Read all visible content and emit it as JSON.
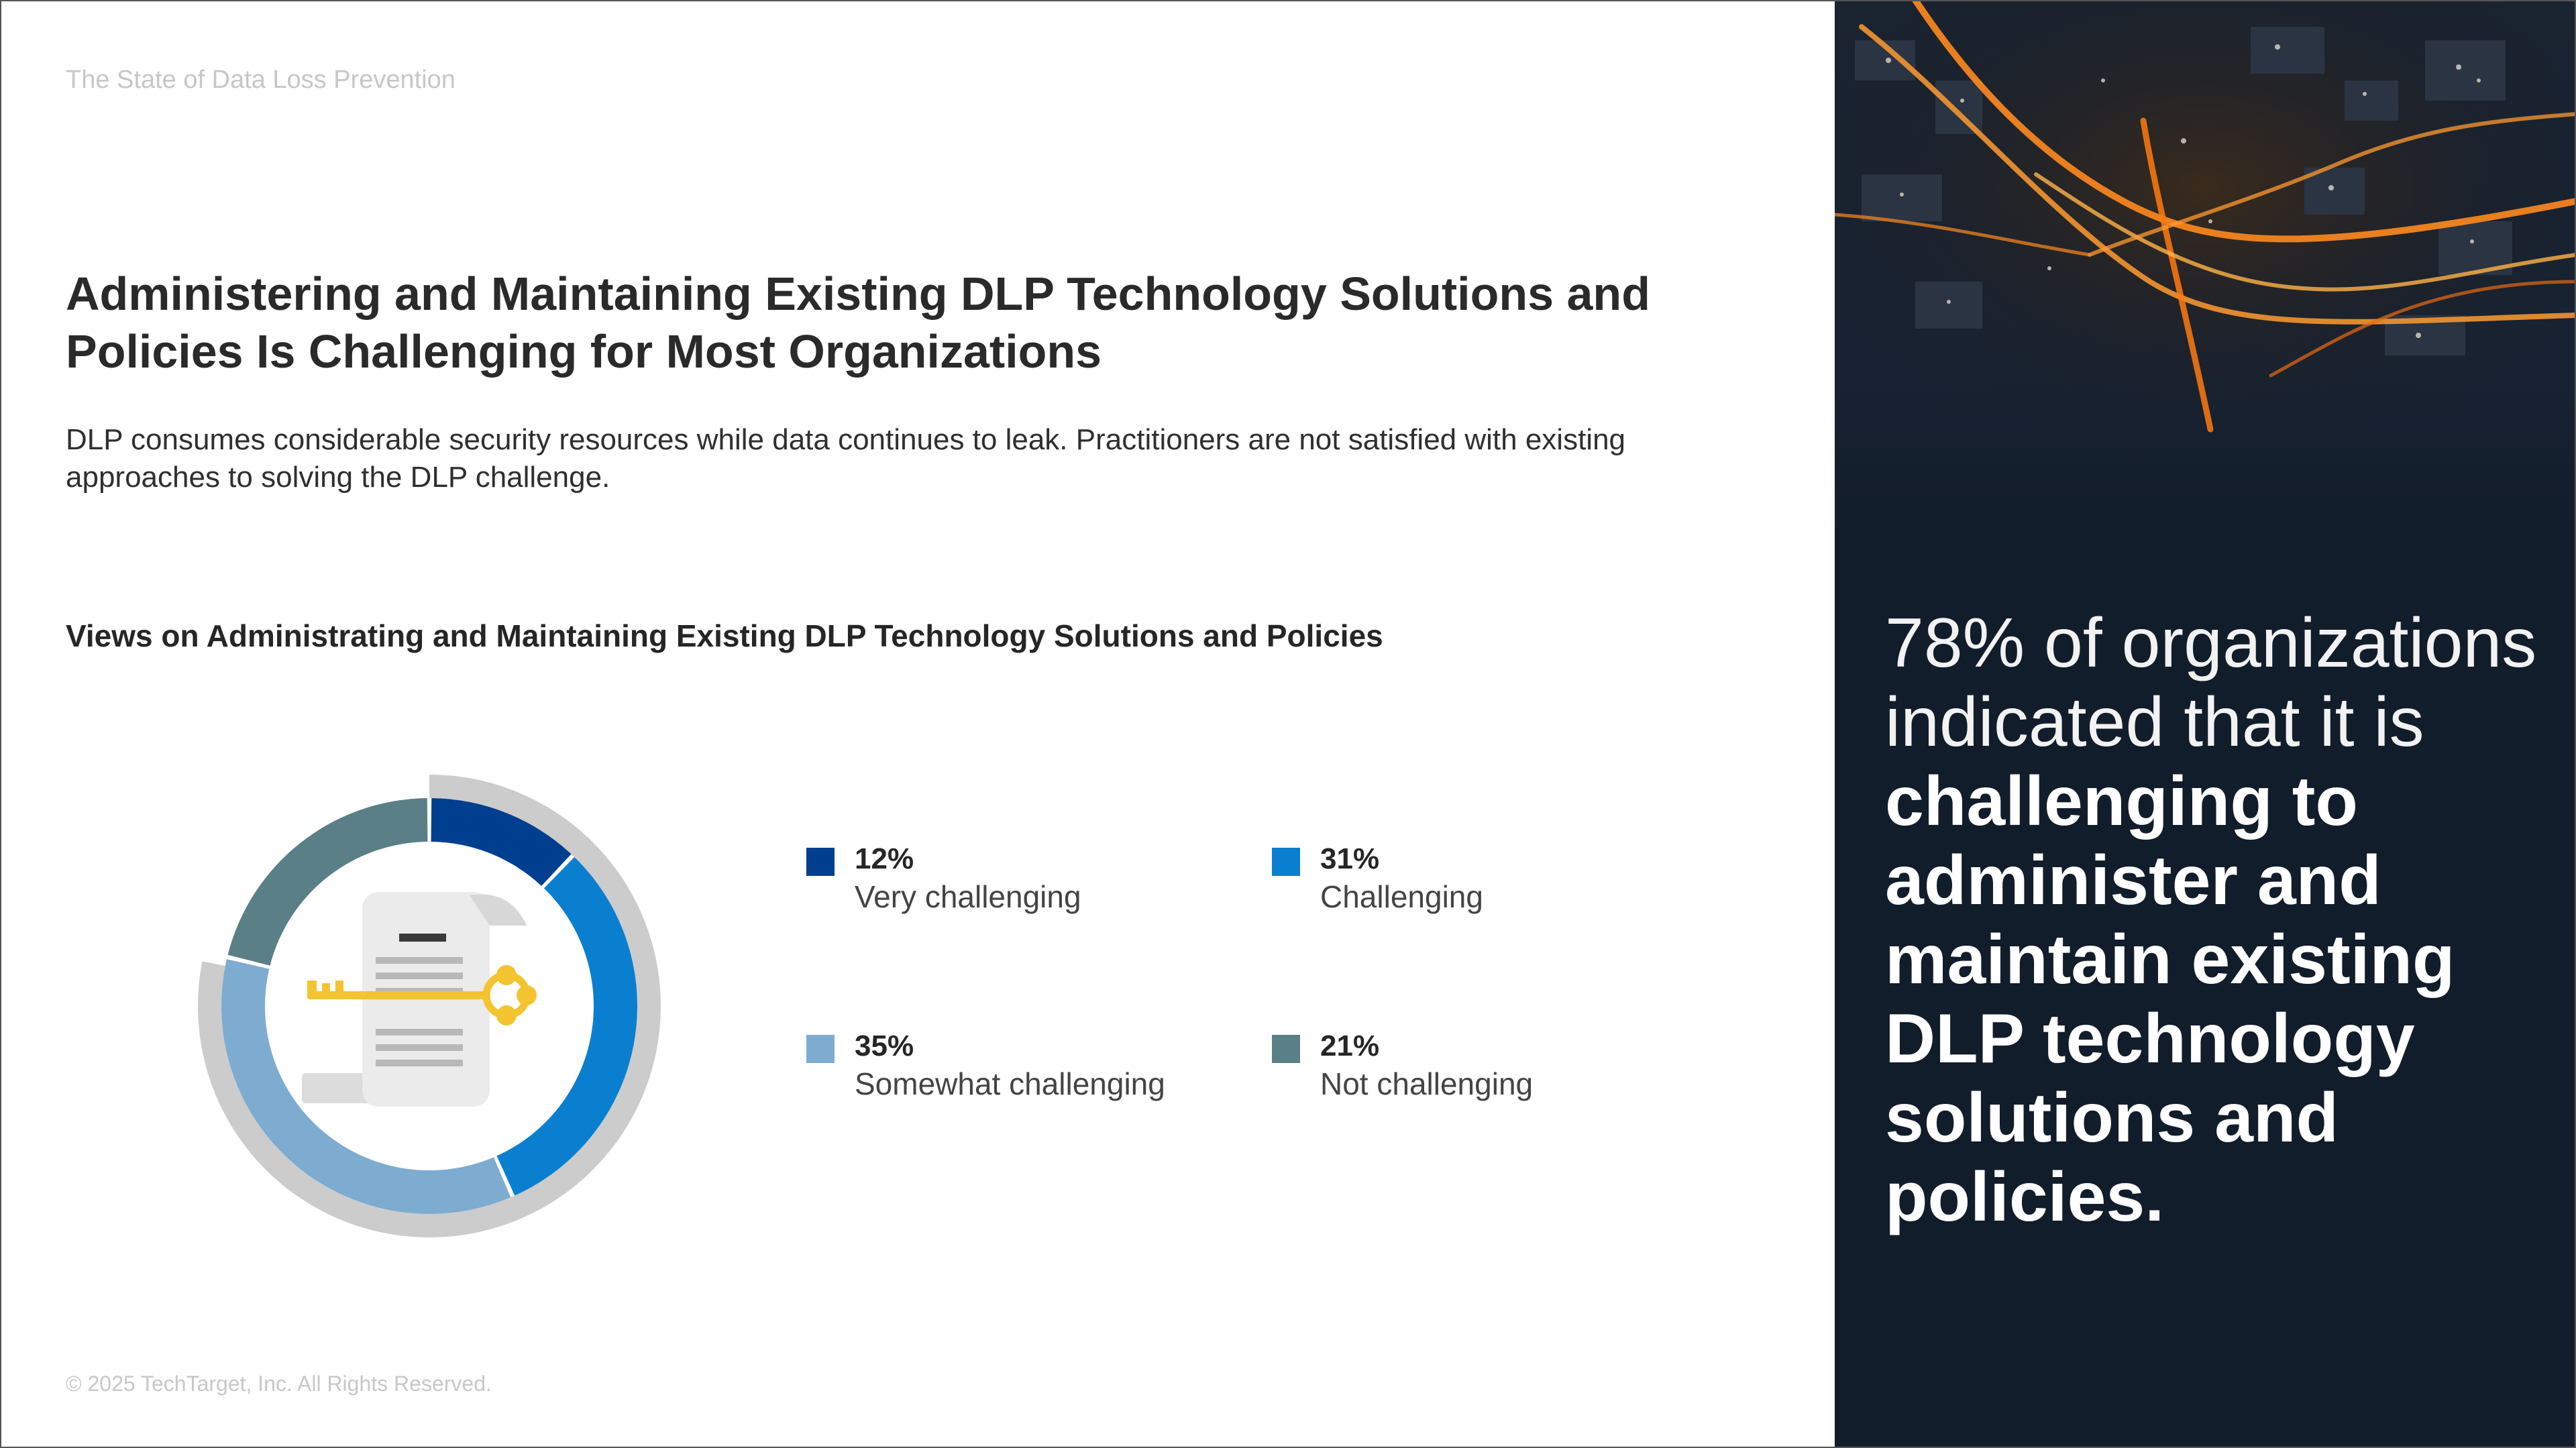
{
  "running_header": "The State of Data Loss Prevention",
  "headline": "Administering and Maintaining Existing DLP Technology Solutions and Policies Is Challenging for Most Organizations",
  "intro": "DLP consumes considerable security resources while data continues to leak. Practitioners are not satisfied with existing approaches to solving the DLP challenge.",
  "chart_data": {
    "type": "pie",
    "title": "Views on Administrating and Maintaining Existing DLP Technology Solutions and Policies",
    "categories": [
      "Very challenging",
      "Challenging",
      "Somewhat challenging",
      "Not challenging"
    ],
    "values": [
      12,
      31,
      35,
      21
    ],
    "value_labels": [
      "12%",
      "31%",
      "35%",
      "21%"
    ],
    "colors": [
      "#003f8f",
      "#0a7fd0",
      "#7eacd0",
      "#5a7f86"
    ],
    "outer_ring_color": "#cccccc",
    "donut": true,
    "legend": "right"
  },
  "callout": {
    "light": "78% of organizations indicated that it is",
    "bold": "challenging to administer and maintain existing DLP technology solutions and policies."
  },
  "copyright": "© 2025 TechTarget, Inc. All Rights Reserved.",
  "icons": {
    "center": "document-key-icon",
    "photo": "city-night-highway-photo"
  }
}
